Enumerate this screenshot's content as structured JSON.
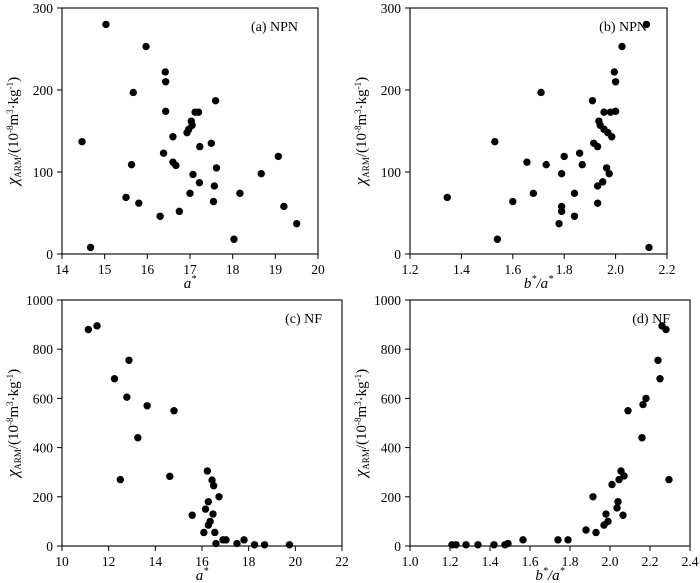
{
  "chart_data": [
    {
      "id": "a",
      "type": "scatter",
      "title": "(a) NPN",
      "xlabel": "a*",
      "ylabel": "χARM/(10⁻⁸m³·kg⁻¹)",
      "xlim": [
        14,
        20
      ],
      "ylim": [
        0,
        300
      ],
      "xticks": [
        14,
        15,
        16,
        17,
        18,
        19,
        20
      ],
      "yticks": [
        0,
        100,
        200,
        300
      ],
      "xtick_labels": [
        "14",
        "15",
        "16",
        "17",
        "18",
        "19",
        "20"
      ],
      "ytick_labels": [
        "0",
        "100",
        "200",
        "300"
      ],
      "points": [
        [
          14.47,
          137
        ],
        [
          14.67,
          8
        ],
        [
          15.03,
          280
        ],
        [
          15.5,
          69
        ],
        [
          15.63,
          109
        ],
        [
          15.67,
          197
        ],
        [
          15.8,
          62
        ],
        [
          15.97,
          253
        ],
        [
          16.3,
          46
        ],
        [
          16.38,
          123
        ],
        [
          16.42,
          222
        ],
        [
          16.43,
          210
        ],
        [
          16.43,
          174
        ],
        [
          16.6,
          143
        ],
        [
          16.6,
          112
        ],
        [
          16.67,
          108
        ],
        [
          16.75,
          52
        ],
        [
          16.93,
          148
        ],
        [
          16.97,
          152
        ],
        [
          17.0,
          74
        ],
        [
          17.03,
          162
        ],
        [
          17.05,
          157
        ],
        [
          17.07,
          97
        ],
        [
          17.12,
          173
        ],
        [
          17.2,
          173
        ],
        [
          17.22,
          87
        ],
        [
          17.23,
          131
        ],
        [
          17.5,
          135
        ],
        [
          17.55,
          64
        ],
        [
          17.57,
          83
        ],
        [
          17.6,
          187
        ],
        [
          17.62,
          105
        ],
        [
          18.03,
          18
        ],
        [
          18.17,
          74
        ],
        [
          18.67,
          98
        ],
        [
          19.07,
          119
        ],
        [
          19.2,
          58
        ],
        [
          19.5,
          37
        ]
      ]
    },
    {
      "id": "b",
      "type": "scatter",
      "title": "(b) NPN",
      "xlabel": "b*/a*",
      "ylabel": "χARM/(10⁻⁸m³·kg⁻¹)",
      "xlim": [
        1.2,
        2.2
      ],
      "ylim": [
        0,
        300
      ],
      "xticks": [
        1.2,
        1.4,
        1.6,
        1.8,
        2.0,
        2.2
      ],
      "yticks": [
        0,
        100,
        200,
        300
      ],
      "xtick_labels": [
        "1.2",
        "1.4",
        "1.6",
        "1.8",
        "2.0",
        "2.2"
      ],
      "ytick_labels": [
        "0",
        "100",
        "200",
        "300"
      ],
      "points": [
        [
          1.345,
          69
        ],
        [
          1.53,
          137
        ],
        [
          1.54,
          18
        ],
        [
          1.6,
          64
        ],
        [
          1.655,
          112
        ],
        [
          1.68,
          74
        ],
        [
          1.71,
          197
        ],
        [
          1.73,
          109
        ],
        [
          1.78,
          37
        ],
        [
          1.79,
          52
        ],
        [
          1.79,
          58
        ],
        [
          1.79,
          98
        ],
        [
          1.8,
          119
        ],
        [
          1.84,
          46
        ],
        [
          1.84,
          74
        ],
        [
          1.86,
          123
        ],
        [
          1.87,
          109
        ],
        [
          1.91,
          187
        ],
        [
          1.915,
          135
        ],
        [
          1.93,
          62
        ],
        [
          1.93,
          83
        ],
        [
          1.93,
          131
        ],
        [
          1.935,
          162
        ],
        [
          1.94,
          157
        ],
        [
          1.95,
          88
        ],
        [
          1.955,
          173
        ],
        [
          1.955,
          152
        ],
        [
          1.965,
          105
        ],
        [
          1.97,
          148
        ],
        [
          1.975,
          98
        ],
        [
          1.98,
          173
        ],
        [
          1.985,
          143
        ],
        [
          1.995,
          222
        ],
        [
          2.0,
          210
        ],
        [
          2.0,
          174
        ],
        [
          2.025,
          253
        ],
        [
          2.12,
          280
        ],
        [
          2.13,
          8
        ]
      ]
    },
    {
      "id": "c",
      "type": "scatter",
      "title": "(c) NF",
      "xlabel": "a*",
      "ylabel": "χARM/(10⁻⁸m³·kg⁻¹)",
      "xlim": [
        10,
        22
      ],
      "ylim": [
        0,
        1000
      ],
      "xticks": [
        10,
        12,
        14,
        16,
        18,
        20,
        22
      ],
      "yticks": [
        0,
        200,
        400,
        600,
        800,
        1000
      ],
      "xtick_labels": [
        "10",
        "12",
        "14",
        "16",
        "18",
        "20",
        "22"
      ],
      "ytick_labels": [
        "0",
        "200",
        "400",
        "600",
        "800",
        "1000"
      ],
      "points": [
        [
          11.13,
          880
        ],
        [
          11.5,
          895
        ],
        [
          12.25,
          680
        ],
        [
          12.5,
          270
        ],
        [
          12.78,
          605
        ],
        [
          12.87,
          755
        ],
        [
          13.25,
          440
        ],
        [
          13.65,
          570
        ],
        [
          14.62,
          283
        ],
        [
          14.8,
          550
        ],
        [
          15.58,
          125
        ],
        [
          16.08,
          55
        ],
        [
          16.15,
          150
        ],
        [
          16.23,
          305
        ],
        [
          16.27,
          180
        ],
        [
          16.27,
          85
        ],
        [
          16.35,
          100
        ],
        [
          16.43,
          268
        ],
        [
          16.47,
          130
        ],
        [
          16.5,
          245
        ],
        [
          16.55,
          55
        ],
        [
          16.6,
          10
        ],
        [
          16.73,
          200
        ],
        [
          16.9,
          25
        ],
        [
          17.03,
          25
        ],
        [
          17.5,
          10
        ],
        [
          17.8,
          25
        ],
        [
          18.25,
          5
        ],
        [
          18.68,
          5
        ],
        [
          19.75,
          5
        ]
      ]
    },
    {
      "id": "d",
      "type": "scatter",
      "title": "(d) NF",
      "xlabel": "b*/a*",
      "ylabel": "χARM/(10⁻⁸m³·kg⁻¹)",
      "xlim": [
        1.0,
        2.4
      ],
      "ylim": [
        0,
        1000
      ],
      "xticks": [
        1.0,
        1.2,
        1.4,
        1.6,
        1.8,
        2.0,
        2.2,
        2.4
      ],
      "yticks": [
        0,
        200,
        400,
        600,
        800,
        1000
      ],
      "xtick_labels": [
        "1.0",
        "1.2",
        "1.4",
        "1.6",
        "1.8",
        "2.0",
        "2.2",
        "2.4"
      ],
      "ytick_labels": [
        "0",
        "200",
        "400",
        "600",
        "800",
        "1000"
      ],
      "points": [
        [
          1.21,
          5
        ],
        [
          1.23,
          5
        ],
        [
          1.28,
          5
        ],
        [
          1.34,
          5
        ],
        [
          1.42,
          5
        ],
        [
          1.475,
          5
        ],
        [
          1.49,
          10
        ],
        [
          1.565,
          25
        ],
        [
          1.74,
          25
        ],
        [
          1.79,
          25
        ],
        [
          1.88,
          65
        ],
        [
          1.915,
          200
        ],
        [
          1.93,
          55
        ],
        [
          1.97,
          85
        ],
        [
          1.98,
          130
        ],
        [
          1.99,
          100
        ],
        [
          2.01,
          250
        ],
        [
          2.035,
          155
        ],
        [
          2.04,
          180
        ],
        [
          2.045,
          270
        ],
        [
          2.055,
          305
        ],
        [
          2.065,
          125
        ],
        [
          2.07,
          285
        ],
        [
          2.09,
          550
        ],
        [
          2.16,
          440
        ],
        [
          2.165,
          575
        ],
        [
          2.18,
          600
        ],
        [
          2.24,
          755
        ],
        [
          2.25,
          680
        ],
        [
          2.26,
          895
        ],
        [
          2.28,
          880
        ],
        [
          2.295,
          270
        ]
      ]
    }
  ]
}
